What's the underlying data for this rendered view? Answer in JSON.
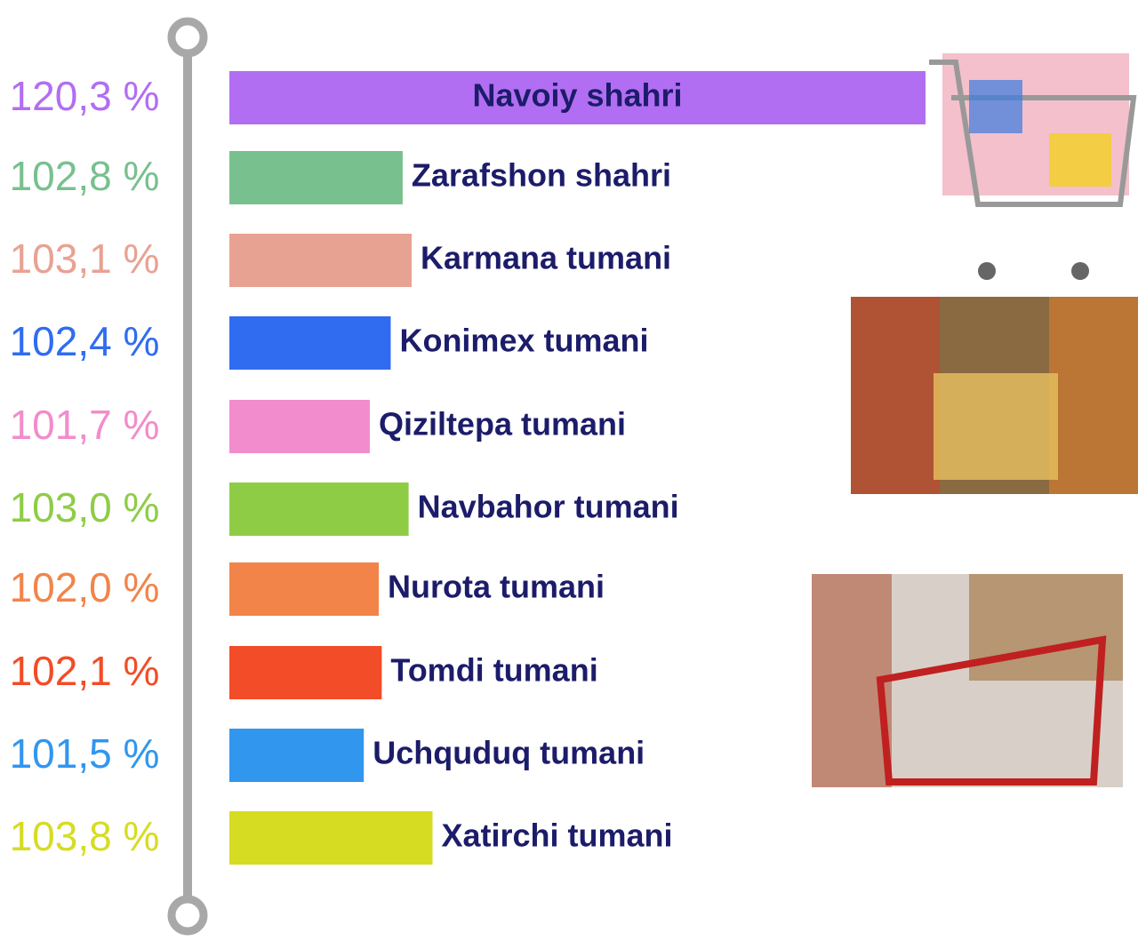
{
  "chart_data": {
    "type": "bar",
    "orientation": "horizontal",
    "categories": [
      "Navoiy shahri",
      "Zarafshon shahri",
      "Karmana tumani",
      "Konimex tumani",
      "Qiziltepa tumani",
      "Navbahor tumani",
      "Nurota tumani",
      "Tomdi tumani",
      "Uchquduq tumani",
      "Xatirchi tumani"
    ],
    "values": [
      120.3,
      102.8,
      103.1,
      102.4,
      101.7,
      103.0,
      102.0,
      102.1,
      101.5,
      103.8
    ],
    "value_labels": [
      "120,3 %",
      "102,8 %",
      "103,1 %",
      "102,4 %",
      "101,7 %",
      "103,0 %",
      "102,0 %",
      "102,1 %",
      "101,5 %",
      "103,8 %"
    ],
    "colors": [
      "#b26ef2",
      "#78c08e",
      "#e8a292",
      "#2f6cf0",
      "#f28ccc",
      "#8fcc46",
      "#f2844a",
      "#f24c28",
      "#3196ee",
      "#d6dc22"
    ]
  }
}
